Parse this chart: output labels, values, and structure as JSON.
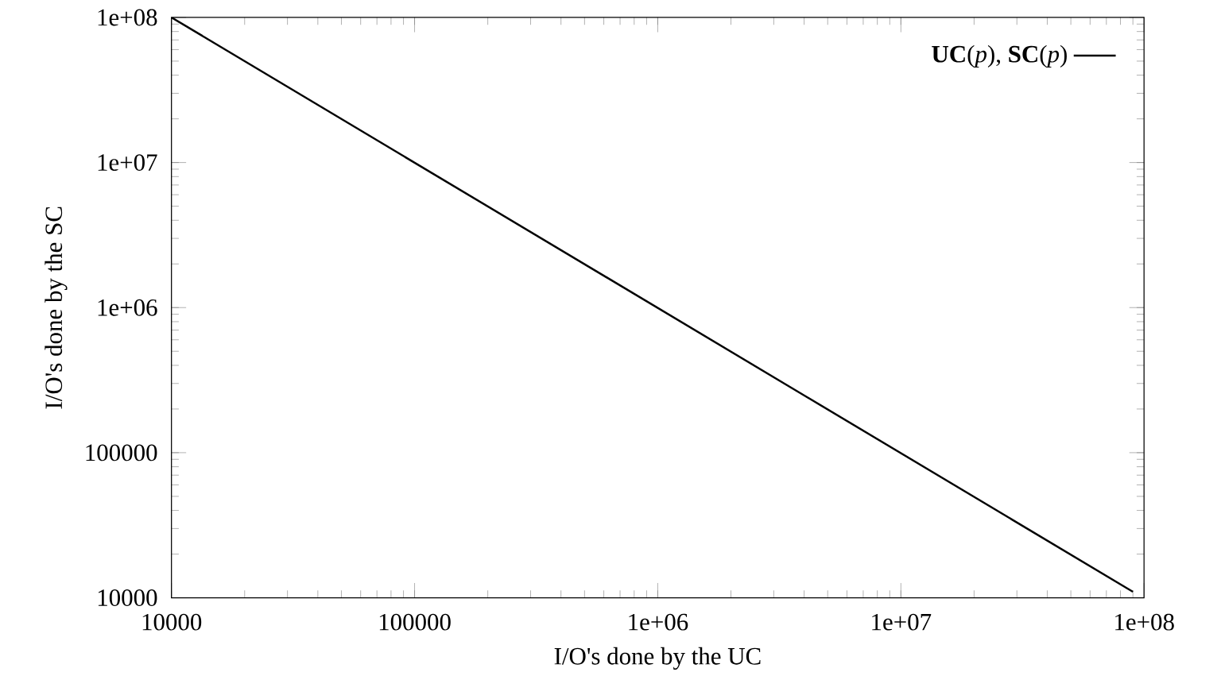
{
  "chart_data": {
    "type": "line",
    "xlabel": "I/O's done by the UC",
    "ylabel": "I/O's done by the SC",
    "log": "xy",
    "legend": "top right",
    "grid": false,
    "marker": "none",
    "line_style": "solid",
    "xlim": [
      10000,
      100000000
    ],
    "ylim": [
      10000,
      100000000
    ],
    "xticks": [
      10000,
      100000,
      {
        "value": 1000000,
        "label": "1e+06"
      },
      {
        "value": 10000000,
        "label": "1e+07"
      },
      {
        "value": 100000000,
        "label": "1e+08"
      }
    ],
    "yticks": [
      10000,
      100000,
      {
        "value": 1000000,
        "label": "1e+06"
      },
      {
        "value": 10000000,
        "label": "1e+07"
      },
      {
        "value": 100000000,
        "label": "1e+08"
      }
    ],
    "series": [
      {
        "name": "**UC**(*p*), **SC**(*p*)",
        "color": "#000000",
        "x": [
          10000,
          90000000
        ],
        "values": [
          100000000,
          11000
        ]
      }
    ]
  }
}
